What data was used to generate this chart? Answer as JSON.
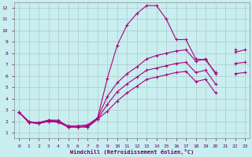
{
  "xlabel": "Windchill (Refroidissement éolien,°C)",
  "background_color": "#c8eef0",
  "grid_color": "#b0c8c8",
  "line_color": "#aa007f",
  "xlim": [
    -0.5,
    23.5
  ],
  "ylim": [
    0.5,
    12.5
  ],
  "xticks": [
    0,
    1,
    2,
    3,
    4,
    5,
    6,
    7,
    8,
    9,
    10,
    11,
    12,
    13,
    14,
    15,
    16,
    17,
    18,
    19,
    20,
    21,
    22,
    23
  ],
  "yticks": [
    1,
    2,
    3,
    4,
    5,
    6,
    7,
    8,
    9,
    10,
    11,
    12
  ],
  "curves": [
    {
      "x": [
        0,
        1,
        2,
        3,
        4,
        5,
        6,
        7,
        8,
        9,
        10,
        11,
        12,
        13,
        14,
        15,
        16,
        17,
        18,
        19,
        20,
        21,
        22,
        23
      ],
      "y": [
        2.8,
        2.0,
        1.8,
        2.1,
        2.1,
        1.5,
        1.5,
        1.6,
        2.3,
        5.8,
        8.7,
        10.5,
        11.5,
        12.2,
        12.2,
        11.0,
        9.2,
        9.2,
        7.5,
        7.4,
        6.3,
        null,
        8.3,
        null
      ]
    },
    {
      "x": [
        0,
        1,
        2,
        3,
        4,
        5,
        6,
        7,
        8,
        9,
        10,
        11,
        12,
        13,
        14,
        15,
        16,
        17,
        18,
        19,
        20,
        21,
        22,
        23
      ],
      "y": [
        2.8,
        1.9,
        1.9,
        2.1,
        2.0,
        1.6,
        1.6,
        1.7,
        2.3,
        4.2,
        5.4,
        6.2,
        6.8,
        7.5,
        7.8,
        8.0,
        8.2,
        8.3,
        7.3,
        7.5,
        6.2,
        null,
        8.1,
        8.3
      ]
    },
    {
      "x": [
        0,
        1,
        2,
        3,
        4,
        5,
        6,
        7,
        8,
        9,
        10,
        11,
        12,
        13,
        14,
        15,
        16,
        17,
        18,
        19,
        20,
        21,
        22,
        23
      ],
      "y": [
        2.8,
        1.9,
        1.8,
        2.0,
        2.0,
        1.5,
        1.5,
        1.5,
        2.2,
        3.5,
        4.6,
        5.3,
        5.9,
        6.5,
        6.7,
        6.9,
        7.1,
        7.2,
        6.3,
        6.5,
        5.3,
        null,
        7.1,
        7.2
      ]
    },
    {
      "x": [
        0,
        1,
        2,
        3,
        4,
        5,
        6,
        7,
        8,
        9,
        10,
        11,
        12,
        13,
        14,
        15,
        16,
        17,
        18,
        19,
        20,
        21,
        22,
        23
      ],
      "y": [
        2.8,
        1.9,
        1.8,
        2.0,
        1.9,
        1.5,
        1.5,
        1.5,
        2.2,
        2.9,
        3.8,
        4.5,
        5.1,
        5.7,
        5.9,
        6.1,
        6.3,
        6.4,
        5.5,
        5.7,
        4.5,
        null,
        6.2,
        6.3
      ]
    }
  ]
}
